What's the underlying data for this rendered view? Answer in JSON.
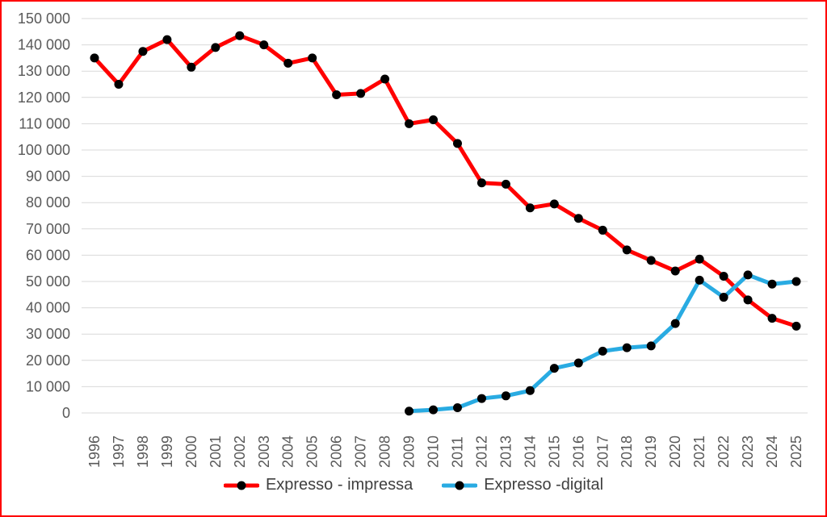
{
  "page": {
    "background": "#ffffff",
    "border_color": "#ff0000"
  },
  "chart_data": {
    "type": "line",
    "title": "",
    "xlabel": "",
    "ylabel": "",
    "x_labels": [
      "1996",
      "1997",
      "1998",
      "1999",
      "2000",
      "2001",
      "2002",
      "2003",
      "2004",
      "2005",
      "2006",
      "2007",
      "2008",
      "2009",
      "2010",
      "2011",
      "2012",
      "2013",
      "2014",
      "2015",
      "2016",
      "2017",
      "2018",
      "2019",
      "2020",
      "2021",
      "2022",
      "2023",
      "2024",
      "2025"
    ],
    "series": [
      {
        "name": "Expresso - impressa",
        "color": "#ff0000",
        "marker_color": "#000000",
        "values": [
          135000,
          125000,
          137500,
          142000,
          131500,
          139000,
          143500,
          140000,
          133000,
          135000,
          121000,
          121500,
          127000,
          110000,
          111500,
          102500,
          87500,
          87000,
          78000,
          79500,
          74000,
          69500,
          62000,
          58000,
          54000,
          58500,
          52000,
          43000,
          36000,
          33000
        ]
      },
      {
        "name": "Expresso -digital",
        "color": "#29abe2",
        "marker_color": "#000000",
        "values": [
          null,
          null,
          null,
          null,
          null,
          null,
          null,
          null,
          null,
          null,
          null,
          null,
          null,
          700,
          1200,
          2000,
          5500,
          6500,
          8500,
          17000,
          19000,
          23500,
          24800,
          25500,
          34000,
          50500,
          44000,
          52500,
          49000,
          50000
        ]
      }
    ],
    "ylim": [
      0,
      150000
    ],
    "ytick_step": 10000,
    "ytick_labels": [
      "0",
      "10 000",
      "20 000",
      "30 000",
      "40 000",
      "50 000",
      "60 000",
      "70 000",
      "80 000",
      "90 000",
      "100 000",
      "110 000",
      "120 000",
      "130 000",
      "140 000",
      "150 000"
    ],
    "grid": true,
    "gridline_color": "#d9d9d9",
    "axis_label_color": "#595959",
    "legend_position": "bottom"
  }
}
